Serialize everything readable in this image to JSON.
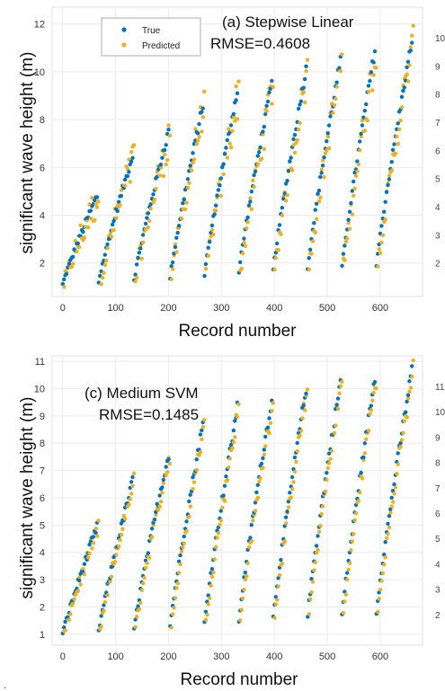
{
  "colors": {
    "true": "#0072BD",
    "predicted": "#EDB120"
  },
  "chart_data": [
    {
      "type": "scatter",
      "panel_label": "(a)  Stepwise Linear",
      "metric": "RMSE=0.4608",
      "xlabel": "Record number",
      "ylabel": "significant wave height (m)",
      "xlim": [
        -20,
        680
      ],
      "ylim": [
        0.6,
        12.7
      ],
      "xticks": [
        "0",
        "100",
        "200",
        "300",
        "400",
        "500",
        "600"
      ],
      "yticks": [
        "2",
        "4",
        "6",
        "8",
        "10",
        "12"
      ],
      "legend": {
        "placement": "top-left",
        "entries": [
          "True",
          "Predicted"
        ]
      },
      "grid": true,
      "right_edge_ticks": [
        "10",
        "9",
        "8",
        "7",
        "6",
        "5",
        "4",
        "3",
        "2"
      ],
      "cycles": [
        {
          "start": 0,
          "end": 65,
          "low": 1.1,
          "high": 4.8
        },
        {
          "start": 68,
          "end": 132,
          "low": 1.2,
          "high": 6.5
        },
        {
          "start": 135,
          "end": 200,
          "low": 1.3,
          "high": 7.5
        },
        {
          "start": 203,
          "end": 265,
          "low": 1.4,
          "high": 8.6
        },
        {
          "start": 268,
          "end": 330,
          "low": 1.5,
          "high": 9.2
        },
        {
          "start": 333,
          "end": 395,
          "low": 1.6,
          "high": 9.5
        },
        {
          "start": 398,
          "end": 460,
          "low": 1.7,
          "high": 10.1
        },
        {
          "start": 463,
          "end": 525,
          "low": 1.8,
          "high": 10.5
        },
        {
          "start": 528,
          "end": 590,
          "low": 1.8,
          "high": 10.9
        },
        {
          "start": 593,
          "end": 660,
          "low": 1.9,
          "high": 11.3
        }
      ],
      "series": [
        {
          "name": "True",
          "noise": 0.1
        },
        {
          "name": "Predicted",
          "noise": 0.55
        }
      ]
    },
    {
      "type": "scatter",
      "panel_label": "(c)  Medium SVM",
      "metric": "RMSE=0.1485",
      "xlabel": "Record number",
      "ylabel": "significant wave height (m)",
      "xlim": [
        -20,
        680
      ],
      "ylim": [
        0.6,
        11.2
      ],
      "xticks": [
        "0",
        "100",
        "200",
        "300",
        "400",
        "500",
        "600"
      ],
      "yticks": [
        "1",
        "2",
        "3",
        "4",
        "5",
        "6",
        "7",
        "8",
        "9",
        "10",
        "11"
      ],
      "grid": true,
      "right_edge_ticks": [
        "11",
        "10",
        "9",
        "8",
        "7",
        "6",
        "5",
        "4",
        "3",
        "2"
      ],
      "cycles": [
        {
          "start": 0,
          "end": 65,
          "low": 1.0,
          "high": 4.9
        },
        {
          "start": 68,
          "end": 132,
          "low": 1.1,
          "high": 6.6
        },
        {
          "start": 135,
          "end": 200,
          "low": 1.2,
          "high": 7.6
        },
        {
          "start": 203,
          "end": 265,
          "low": 1.3,
          "high": 8.7
        },
        {
          "start": 268,
          "end": 330,
          "low": 1.4,
          "high": 9.3
        },
        {
          "start": 333,
          "end": 395,
          "low": 1.5,
          "high": 9.6
        },
        {
          "start": 398,
          "end": 460,
          "low": 1.6,
          "high": 10.0
        },
        {
          "start": 463,
          "end": 525,
          "low": 1.7,
          "high": 10.3
        },
        {
          "start": 528,
          "end": 590,
          "low": 1.7,
          "high": 10.4
        },
        {
          "start": 593,
          "end": 660,
          "low": 1.8,
          "high": 10.7
        }
      ],
      "series": [
        {
          "name": "True",
          "noise": 0.1
        },
        {
          "name": "Predicted",
          "noise": 0.18
        }
      ]
    }
  ],
  "footer_mark": "."
}
